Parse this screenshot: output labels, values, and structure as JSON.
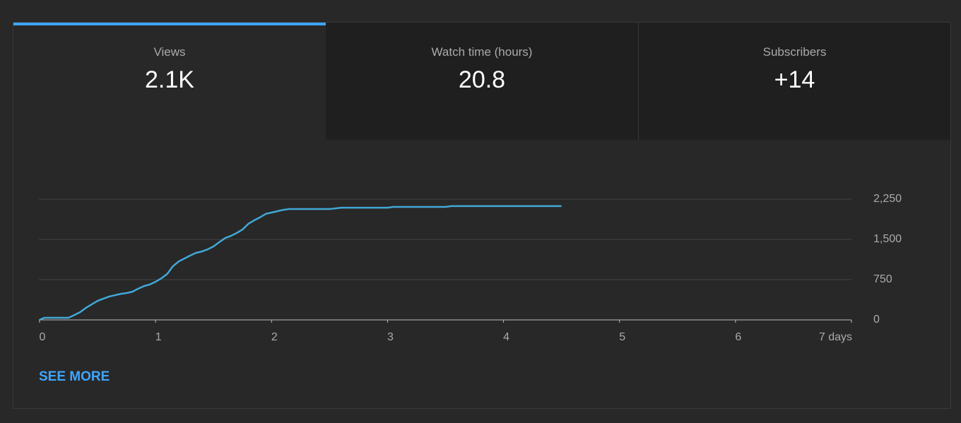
{
  "tabs": [
    {
      "label": "Views",
      "value": "2.1K"
    },
    {
      "label": "Watch time (hours)",
      "value": "20.8"
    },
    {
      "label": "Subscribers",
      "value": "+14"
    }
  ],
  "chart_data": {
    "type": "line",
    "x": [
      0,
      0.04,
      0.25,
      0.3,
      0.35,
      0.4,
      0.45,
      0.5,
      0.55,
      0.6,
      0.65,
      0.7,
      0.75,
      0.8,
      0.85,
      0.9,
      0.95,
      1.0,
      1.05,
      1.1,
      1.15,
      1.2,
      1.25,
      1.3,
      1.35,
      1.4,
      1.45,
      1.5,
      1.55,
      1.6,
      1.65,
      1.7,
      1.75,
      1.8,
      1.85,
      1.9,
      1.95,
      2.0,
      2.05,
      2.1,
      2.15,
      2.5,
      2.6,
      3.0,
      3.05,
      3.5,
      3.55,
      4.5
    ],
    "series": [
      {
        "color": "#41a8d6",
        "values": [
          0,
          40,
          40,
          90,
          145,
          225,
          290,
          355,
          395,
          435,
          460,
          485,
          500,
          525,
          580,
          630,
          660,
          710,
          775,
          855,
          1000,
          1090,
          1145,
          1200,
          1250,
          1275,
          1315,
          1370,
          1450,
          1525,
          1565,
          1620,
          1685,
          1790,
          1855,
          1910,
          1975,
          2000,
          2025,
          2050,
          2065,
          2065,
          2090,
          2090,
          2105,
          2105,
          2120,
          2120
        ]
      }
    ],
    "xlim": [
      0,
      7
    ],
    "xticks": [
      0,
      1,
      2,
      3,
      4,
      5,
      6,
      {
        "value": 7,
        "label": "7 days"
      }
    ],
    "ylim": [
      0,
      2250
    ],
    "yticks": [
      0,
      750,
      {
        "value": 1500,
        "label": "1,500"
      },
      {
        "value": 2250,
        "label": "2,250"
      }
    ],
    "grid": true
  },
  "link": "SEE MORE"
}
